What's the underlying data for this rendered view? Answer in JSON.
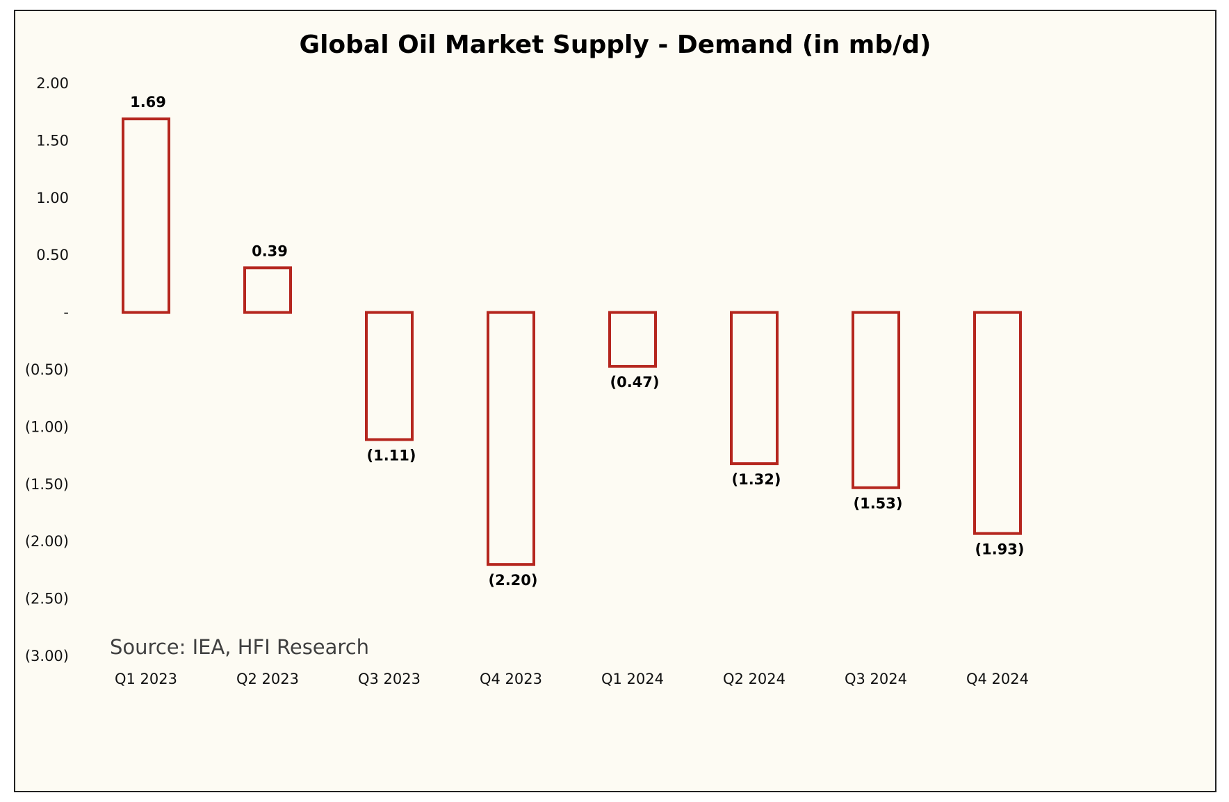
{
  "chart_data": {
    "type": "bar",
    "title": "Global Oil Market Supply - Demand (in mb/d)",
    "xlabel": "",
    "ylabel": "",
    "categories": [
      "Q1 2023",
      "Q2 2023",
      "Q3 2023",
      "Q4 2023",
      "Q1 2024",
      "Q2 2024",
      "Q3 2024",
      "Q4 2024"
    ],
    "values": [
      1.69,
      0.39,
      -1.11,
      -2.2,
      -0.47,
      -1.32,
      -1.53,
      -1.93
    ],
    "value_labels": [
      "1.69",
      "0.39",
      "(1.11)",
      "(2.20)",
      "(0.47)",
      "(1.32)",
      "(1.53)",
      "(1.93)"
    ],
    "ylim": [
      -3.0,
      2.0
    ],
    "yticks": [
      2.0,
      1.5,
      1.0,
      0.5,
      0,
      -0.5,
      -1.0,
      -1.5,
      -2.0,
      -2.5,
      -3.0
    ],
    "ytick_labels": [
      "2.00",
      "1.50",
      "1.00",
      "0.50",
      "-",
      "(0.50)",
      "(1.00)",
      "(1.50)",
      "(2.00)",
      "(2.50)",
      "(3.00)"
    ],
    "grid": false,
    "legend": "none",
    "bar_style": "outline",
    "bar_color": "#b5261e",
    "source": "Source: IEA, HFI Research"
  }
}
